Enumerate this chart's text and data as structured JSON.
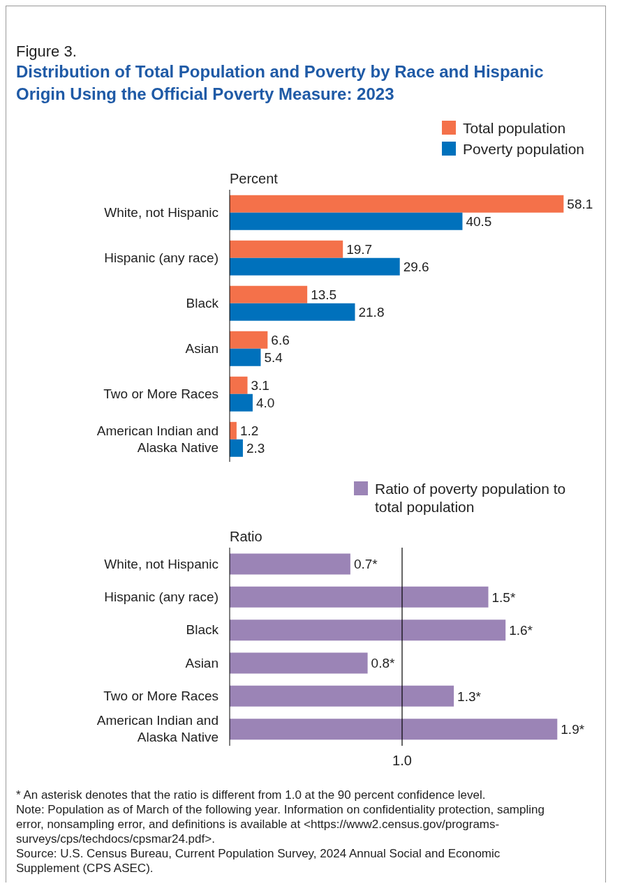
{
  "chart_data": [
    {
      "type": "bar",
      "orientation": "horizontal",
      "subtitle": "Figure 3.",
      "title": "Distribution of Total Population and Poverty by Race and Hispanic Origin Using the Official Poverty Measure: 2023",
      "xlabel": "Percent",
      "categories": [
        "White, not Hispanic",
        "Hispanic (any race)",
        "Black",
        "Asian",
        "Two or More Races",
        "American Indian and Alaska Native"
      ],
      "series": [
        {
          "name": "Total population",
          "color": "#f4714a",
          "values": [
            58.1,
            19.7,
            13.5,
            6.6,
            3.1,
            1.2
          ],
          "value_labels": [
            "58.1",
            "19.7",
            "13.5",
            "6.6",
            "3.1",
            "1.2"
          ]
        },
        {
          "name": "Poverty population",
          "color": "#0071bc",
          "values": [
            40.5,
            29.6,
            21.8,
            5.4,
            4.0,
            2.3
          ],
          "value_labels": [
            "40.5",
            "29.6",
            "21.8",
            "5.4",
            "4.0",
            "2.3"
          ]
        }
      ],
      "legend": "top right"
    },
    {
      "type": "bar",
      "orientation": "horizontal",
      "xlabel": "Ratio",
      "categories": [
        "White, not Hispanic",
        "Hispanic (any race)",
        "Black",
        "Asian",
        "Two or More Races",
        "American Indian and Alaska Native"
      ],
      "series": [
        {
          "name": "Ratio of poverty population to total population",
          "color": "#9b84b6",
          "values": [
            0.7,
            1.5,
            1.6,
            0.8,
            1.3,
            1.9
          ],
          "value_labels": [
            "0.7*",
            "1.5*",
            "1.6*",
            "0.8*",
            "1.3*",
            "1.9*"
          ]
        }
      ],
      "ref_lines": [
        {
          "axis": "x",
          "value": 1,
          "label": "1.0",
          "color": "#000000"
        }
      ],
      "legend": "top right",
      "annotations": [
        "* An asterisk denotes that the ratio is different from 1.0 at the 90 percent confidence level.",
        "Note: Population as of March of the following year. Information on confidentiality protection, sampling error, nonsampling error, and definitions is available at <https://www2.census.gov/programs-surveys/cps/techdocs/cpsmar24.pdf>.",
        "Source: U.S. Census Bureau, Current Population Survey, 2024 Annual Social and Economic Supplement (CPS ASEC)."
      ]
    }
  ]
}
